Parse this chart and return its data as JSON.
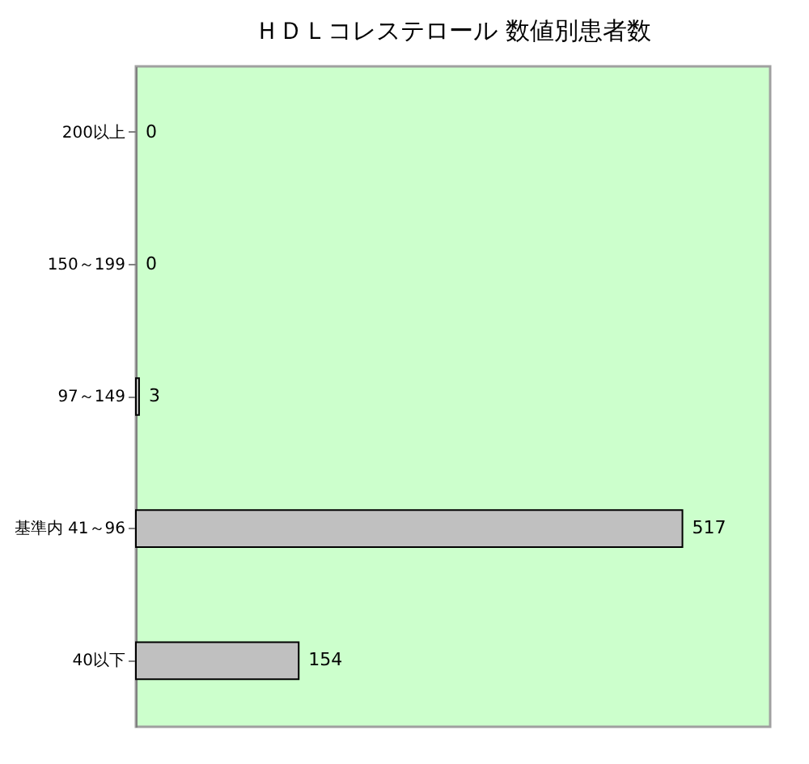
{
  "chart_data": {
    "type": "bar",
    "title": "ＨＤＬコレステロール 数値別患者数",
    "orientation": "horizontal",
    "categories": [
      "200以上",
      "150～199",
      "97～149",
      "基準内 41～96",
      "40以下"
    ],
    "values": [
      0,
      0,
      3,
      517,
      154
    ],
    "color": "#c0c0c0",
    "xlim": [
      0,
      600
    ],
    "data_labels": true,
    "tick_labels": "y"
  }
}
